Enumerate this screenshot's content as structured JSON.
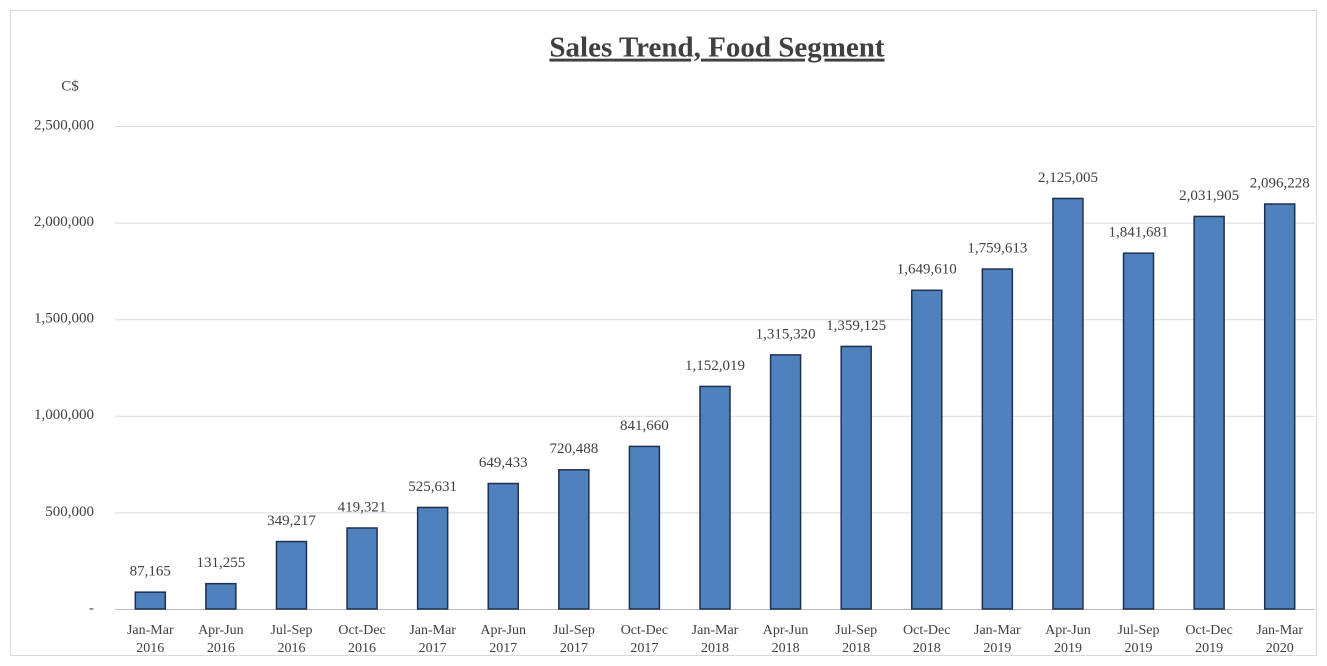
{
  "chart_data": {
    "type": "bar",
    "title": "Sales Trend, Food Segment",
    "y_label": "C$",
    "categories": [
      [
        "Jan-Mar",
        "2016"
      ],
      [
        "Apr-Jun",
        "2016"
      ],
      [
        "Jul-Sep",
        "2016"
      ],
      [
        "Oct-Dec",
        "2016"
      ],
      [
        "Jan-Mar",
        "2017"
      ],
      [
        "Apr-Jun",
        "2017"
      ],
      [
        "Jul-Sep",
        "2017"
      ],
      [
        "Oct-Dec",
        "2017"
      ],
      [
        "Jan-Mar",
        "2018"
      ],
      [
        "Apr-Jun",
        "2018"
      ],
      [
        "Jul-Sep",
        "2018"
      ],
      [
        "Oct-Dec",
        "2018"
      ],
      [
        "Jan-Mar",
        "2019"
      ],
      [
        "Apr-Jun",
        "2019"
      ],
      [
        "Jul-Sep",
        "2019"
      ],
      [
        "Oct-Dec",
        "2019"
      ],
      [
        "Jan-Mar",
        "2020"
      ]
    ],
    "values": [
      87165,
      131255,
      349217,
      419321,
      525631,
      649433,
      720488,
      841660,
      1152019,
      1315320,
      1359125,
      1649610,
      1759613,
      2125005,
      1841681,
      2031905,
      2096228
    ],
    "value_labels": [
      "87,165",
      "131,255",
      "349,217",
      "419,321",
      "525,631",
      "649,433",
      "720,488",
      "841,660",
      "1,152,019",
      "1,315,320",
      "1,359,125",
      "1,649,610",
      "1,759,613",
      "2,125,005",
      "1,841,681",
      "2,031,905",
      "2,096,228"
    ],
    "color": "#4f81bd",
    "ylim": [
      0,
      2500000
    ],
    "yticks": [
      {
        "value": 0,
        "label": "-"
      },
      {
        "value": 500000,
        "label": "500,000"
      },
      {
        "value": 1000000,
        "label": "1,000,000"
      },
      {
        "value": 1500000,
        "label": "1,500,000"
      },
      {
        "value": 2000000,
        "label": "2,000,000"
      },
      {
        "value": 2500000,
        "label": "2,500,000"
      }
    ],
    "grid": true
  }
}
